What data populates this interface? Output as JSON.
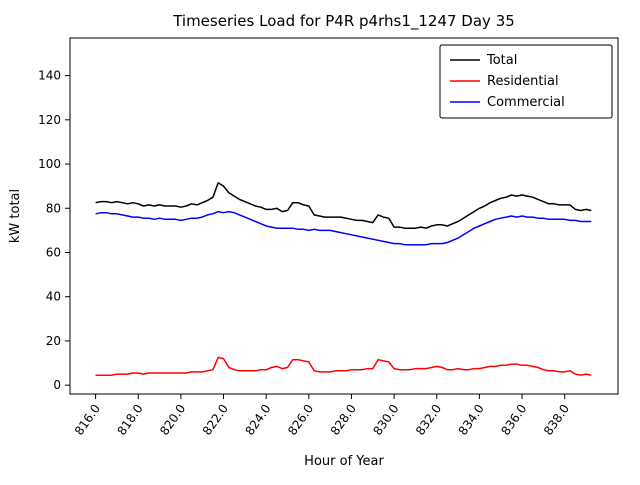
{
  "figure": {
    "background": "#ffffff",
    "axes_edge_color": "#000000"
  },
  "chart_data": {
    "type": "line",
    "title": "Timeseries Load for P4R p4rhs1_1247  Day 35",
    "xlabel": "Hour of Year",
    "ylabel": "kW total",
    "grid": false,
    "xlim": [
      814.8,
      840.5
    ],
    "ylim": [
      -4,
      157
    ],
    "x_ticks": [
      816,
      818,
      820,
      822,
      824,
      826,
      828,
      830,
      832,
      834,
      836,
      838
    ],
    "x_tick_labels": [
      "816.0",
      "818.0",
      "820.0",
      "822.0",
      "824.0",
      "826.0",
      "828.0",
      "830.0",
      "832.0",
      "834.0",
      "836.0",
      "838.0"
    ],
    "y_ticks": [
      0,
      20,
      40,
      60,
      80,
      100,
      120,
      140
    ],
    "y_tick_labels": [
      "0",
      "20",
      "40",
      "60",
      "80",
      "100",
      "120",
      "140"
    ],
    "legend": {
      "position": "upper right",
      "border_color": "#000000",
      "background": "#ffffff"
    },
    "x": [
      816,
      816.25,
      816.5,
      816.75,
      817,
      817.25,
      817.5,
      817.75,
      818,
      818.25,
      818.5,
      818.75,
      819,
      819.25,
      819.5,
      819.75,
      820,
      820.25,
      820.5,
      820.75,
      821,
      821.25,
      821.5,
      821.75,
      822,
      822.25,
      822.5,
      822.75,
      823,
      823.25,
      823.5,
      823.75,
      824,
      824.25,
      824.5,
      824.75,
      825,
      825.25,
      825.5,
      825.75,
      826,
      826.25,
      826.5,
      826.75,
      827,
      827.25,
      827.5,
      827.75,
      828,
      828.25,
      828.5,
      828.75,
      829,
      829.25,
      829.5,
      829.75,
      830,
      830.25,
      830.5,
      830.75,
      831,
      831.25,
      831.5,
      831.75,
      832,
      832.25,
      832.5,
      832.75,
      833,
      833.25,
      833.5,
      833.75,
      834,
      834.25,
      834.5,
      834.75,
      835,
      835.25,
      835.5,
      835.75,
      836,
      836.25,
      836.5,
      836.75,
      837,
      837.25,
      837.5,
      837.75,
      838,
      838.25,
      838.5,
      838.75,
      839,
      839.25
    ],
    "series": [
      {
        "name": "Total",
        "color": "#000000",
        "values": [
          82.5,
          83,
          83,
          82.5,
          83,
          82.5,
          82,
          82.5,
          82,
          81,
          81.5,
          81,
          81.5,
          81,
          81,
          81,
          80.5,
          81,
          82,
          81.5,
          82.5,
          83.5,
          85,
          91.5,
          90,
          87,
          85.5,
          84,
          83,
          82,
          81,
          80.5,
          79.5,
          79.5,
          80,
          78.5,
          79,
          82.5,
          82.5,
          81.5,
          81,
          77,
          76.5,
          76,
          76,
          76,
          76,
          75.5,
          75,
          74.5,
          74.5,
          74,
          73.5,
          77,
          76,
          75.5,
          71.5,
          71.5,
          71,
          71,
          71,
          71.5,
          71,
          72,
          72.5,
          72.5,
          72,
          73,
          74,
          75.5,
          77,
          78.5,
          80,
          81,
          82.5,
          83.5,
          84.5,
          85,
          86,
          85.5,
          86,
          85.5,
          85,
          84,
          83,
          82,
          82,
          81.5,
          81.5,
          81.5,
          79.5,
          79,
          79.5,
          79
        ]
      },
      {
        "name": "Residential",
        "color": "#ff0000",
        "values": [
          4.5,
          4.5,
          4.5,
          4.5,
          5,
          5,
          5,
          5.5,
          5.5,
          5,
          5.5,
          5.5,
          5.5,
          5.5,
          5.5,
          5.5,
          5.5,
          5.5,
          6,
          6,
          6,
          6.5,
          7,
          12.5,
          12,
          8,
          7,
          6.5,
          6.5,
          6.5,
          6.5,
          7,
          7,
          8,
          8.5,
          7.5,
          8,
          11.5,
          11.5,
          11,
          10.5,
          6.5,
          6,
          6,
          6,
          6.5,
          6.5,
          6.5,
          7,
          7,
          7,
          7.5,
          7.5,
          11.5,
          11,
          10.5,
          7.5,
          7,
          7,
          7,
          7.5,
          7.5,
          7.5,
          8,
          8.5,
          8,
          7,
          7,
          7.5,
          7,
          7,
          7.5,
          7.5,
          8,
          8.5,
          8.5,
          9,
          9,
          9.5,
          9.5,
          9,
          9,
          8.5,
          8,
          7,
          6.5,
          6.5,
          6,
          6,
          6.5,
          5,
          4.5,
          5,
          4.5
        ]
      },
      {
        "name": "Commercial",
        "color": "#0000ff",
        "values": [
          77.5,
          78,
          78,
          77.5,
          77.5,
          77,
          76.5,
          76,
          76,
          75.5,
          75.5,
          75,
          75.5,
          75,
          75,
          75,
          74.5,
          75,
          75.5,
          75.5,
          76,
          77,
          77.5,
          78.5,
          78,
          78.5,
          78,
          77,
          76,
          75,
          74,
          73,
          72,
          71.5,
          71,
          71,
          71,
          71,
          70.5,
          70.5,
          70,
          70.5,
          70,
          70,
          70,
          69.5,
          69,
          68.5,
          68,
          67.5,
          67,
          66.5,
          66,
          65.5,
          65,
          64.5,
          64,
          64,
          63.5,
          63.5,
          63.5,
          63.5,
          63.5,
          64,
          64,
          64,
          64.5,
          65.5,
          66.5,
          68,
          69.5,
          71,
          72,
          73,
          74,
          75,
          75.5,
          76,
          76.5,
          76,
          76.5,
          76,
          76,
          75.5,
          75.5,
          75,
          75,
          75,
          75,
          74.5,
          74.5,
          74,
          74,
          74
        ]
      }
    ]
  }
}
